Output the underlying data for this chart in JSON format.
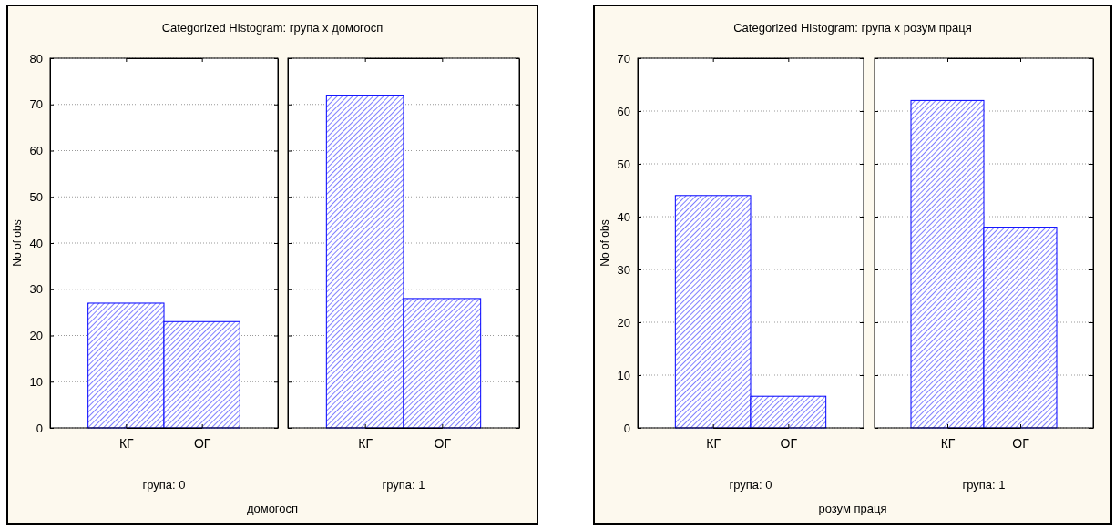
{
  "chart_data": [
    {
      "type": "bar",
      "title": "Categorized Histogram: група x домогосп",
      "ylabel": "No of obs",
      "xlabel": "група: 0",
      "annotations": [
        "домогосп"
      ],
      "categories": [
        "КГ",
        "ОГ"
      ],
      "values": [
        27,
        23
      ],
      "color": "#0000ff",
      "ylim": [
        0,
        80
      ],
      "yticks": [
        0,
        10,
        20,
        30,
        40,
        50,
        60,
        70,
        80
      ],
      "grid": "y"
    },
    {
      "type": "bar",
      "xlabel": "група: 1",
      "categories": [
        "КГ",
        "ОГ"
      ],
      "values": [
        72,
        28
      ],
      "color": "#0000ff",
      "ylim": [
        0,
        80
      ],
      "yticks": [
        0,
        10,
        20,
        30,
        40,
        50,
        60,
        70,
        80
      ],
      "grid": "y",
      "tick_labels": "x"
    },
    {
      "type": "bar",
      "title": "Categorized Histogram: група x розум праця",
      "ylabel": "No of obs",
      "xlabel": "група: 0",
      "annotations": [
        "розум праця"
      ],
      "categories": [
        "КГ",
        "ОГ"
      ],
      "values": [
        44,
        6
      ],
      "color": "#0000ff",
      "ylim": [
        0,
        70
      ],
      "yticks": [
        0,
        10,
        20,
        30,
        40,
        50,
        60,
        70
      ],
      "grid": "y"
    },
    {
      "type": "bar",
      "xlabel": "група: 1",
      "categories": [
        "КГ",
        "ОГ"
      ],
      "values": [
        62,
        38
      ],
      "color": "#0000ff",
      "ylim": [
        0,
        70
      ],
      "yticks": [
        0,
        10,
        20,
        30,
        40,
        50,
        60,
        70
      ],
      "grid": "y",
      "tick_labels": "x"
    }
  ]
}
